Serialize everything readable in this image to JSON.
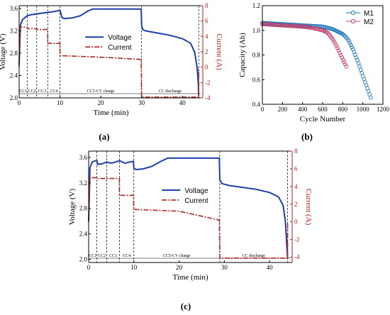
{
  "chart_data": [
    {
      "panel": "(a)",
      "type": "line",
      "xlabel": "Time (min)",
      "ylabel": "Voltage (V)",
      "ylabel2": "Current (A)",
      "xlim": [
        0,
        45
      ],
      "ylim": [
        2.0,
        3.65
      ],
      "y2lim": [
        -4,
        8
      ],
      "x_ticks": [
        0,
        10,
        20,
        30,
        40
      ],
      "y_ticks": [
        2.0,
        2.4,
        2.8,
        3.2,
        3.6
      ],
      "y2_ticks": [
        -4,
        -2,
        0,
        2,
        4,
        6,
        8
      ],
      "legend": "top-center",
      "phase_labels": [
        "CC1",
        "CC2",
        "CC3",
        "CC4",
        "CC5-CV charge",
        "CC discharge"
      ],
      "phase_boundaries": [
        2,
        4.3,
        7,
        10,
        30,
        44
      ],
      "series": [
        {
          "name": "Voltage",
          "color": "#1f3fa8",
          "style": "solid",
          "x": [
            0,
            0.3,
            0.8,
            1.5,
            2,
            3,
            4.3,
            5,
            6,
            7,
            8,
            9,
            10,
            10.5,
            11,
            13,
            15,
            17,
            18,
            20,
            25,
            29.9,
            30,
            30.3,
            31,
            34,
            37,
            40,
            42,
            43,
            43.6,
            43.9,
            44
          ],
          "y": [
            2.6,
            3.3,
            3.4,
            3.44,
            3.47,
            3.49,
            3.5,
            3.51,
            3.52,
            3.53,
            3.54,
            3.55,
            3.57,
            3.44,
            3.42,
            3.43,
            3.47,
            3.56,
            3.59,
            3.59,
            3.59,
            3.59,
            3.3,
            3.22,
            3.2,
            3.16,
            3.12,
            3.06,
            2.98,
            2.82,
            2.55,
            2.25,
            2.03
          ]
        },
        {
          "name": "Current",
          "color": "#b22222",
          "style": "dashdot",
          "x": [
            0,
            0.3,
            2,
            2,
            4.3,
            4.3,
            7,
            7,
            10,
            10,
            20,
            29.9,
            30,
            44,
            44
          ],
          "y": [
            0,
            5.2,
            5.2,
            5.0,
            5.0,
            4.9,
            4.9,
            3.1,
            3.1,
            1.5,
            1.3,
            1.0,
            -3.9,
            -3.9,
            0
          ]
        }
      ]
    },
    {
      "panel": "(b)",
      "type": "scatter",
      "xlabel": "Cycle Number",
      "ylabel": "Capacity (Ah)",
      "xlim": [
        0,
        1200
      ],
      "ylim": [
        0.4,
        1.2
      ],
      "x_ticks": [
        0,
        200,
        400,
        600,
        800,
        1000,
        1200
      ],
      "y_ticks": [
        0.4,
        0.6,
        0.8,
        1.0,
        1.2
      ],
      "legend": "top-right",
      "series": [
        {
          "name": "M1",
          "color": "#1f77b4",
          "marker": "circle",
          "x": [
            0,
            200,
            400,
            600,
            700,
            800,
            850,
            900,
            950,
            1000,
            1050,
            1080
          ],
          "y": [
            1.06,
            1.05,
            1.04,
            1.03,
            1.01,
            0.97,
            0.93,
            0.85,
            0.75,
            0.63,
            0.52,
            0.45
          ]
        },
        {
          "name": "M2",
          "color": "#c04070",
          "marker": "circle",
          "x": [
            0,
            200,
            400,
            500,
            600,
            650,
            700,
            740,
            780,
            810,
            840
          ],
          "y": [
            1.05,
            1.04,
            1.03,
            1.02,
            1.0,
            0.98,
            0.93,
            0.87,
            0.8,
            0.75,
            0.7
          ]
        }
      ]
    },
    {
      "panel": "(c)",
      "type": "line",
      "xlabel": "Time (min)",
      "ylabel": "Voltage (V)",
      "ylabel2": "Current (A)",
      "xlim": [
        0,
        45
      ],
      "ylim": [
        1.95,
        3.7
      ],
      "y2lim": [
        -4.6,
        8
      ],
      "x_ticks": [
        0,
        10,
        20,
        30,
        40
      ],
      "y_ticks": [
        2.0,
        2.4,
        2.8,
        3.2,
        3.6
      ],
      "y2_ticks": [
        -4,
        -2,
        0,
        2,
        4,
        6,
        8
      ],
      "legend": "top-center",
      "phase_labels": [
        "CC1",
        "CC2",
        "CC3",
        "CC4",
        "CC5-CV charge",
        "CC discharge"
      ],
      "phase_boundaries": [
        1.8,
        4,
        6.8,
        10,
        29,
        44
      ],
      "series": [
        {
          "name": "Voltage",
          "color": "#1f3fa8",
          "style": "solid",
          "x": [
            0,
            0.3,
            0.8,
            1.5,
            1.8,
            2,
            3,
            4,
            5,
            6,
            6.8,
            8,
            9.9,
            10,
            10.5,
            12,
            14,
            16,
            17.5,
            20,
            25,
            28.9,
            29,
            29.5,
            31,
            34,
            37,
            40,
            42,
            43,
            43.5,
            43.8,
            44
          ],
          "y": [
            2.6,
            3.44,
            3.53,
            3.55,
            3.55,
            3.49,
            3.5,
            3.53,
            3.51,
            3.53,
            3.55,
            3.51,
            3.54,
            3.43,
            3.41,
            3.42,
            3.46,
            3.54,
            3.59,
            3.59,
            3.59,
            3.59,
            3.25,
            3.19,
            3.16,
            3.13,
            3.1,
            3.05,
            2.98,
            2.85,
            2.6,
            2.25,
            2.02
          ]
        },
        {
          "name": "Current",
          "color": "#b22222",
          "style": "dashdot",
          "x": [
            0,
            0.3,
            1.8,
            1.8,
            4,
            4,
            6.8,
            6.8,
            9.9,
            10,
            20,
            28.9,
            29,
            44,
            44
          ],
          "y": [
            0,
            5.0,
            5.0,
            4.9,
            4.9,
            4.9,
            4.9,
            3.0,
            3.0,
            1.4,
            1.2,
            0.2,
            -4.1,
            -4.1,
            0
          ]
        }
      ]
    }
  ]
}
